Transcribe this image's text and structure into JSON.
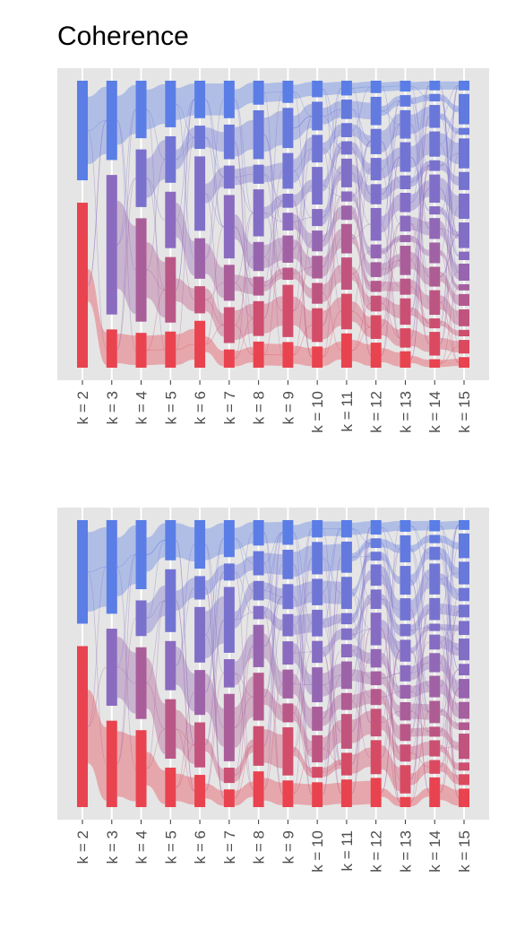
{
  "title": "Coherence",
  "chart_data": [
    {
      "type": "alluvial",
      "title": "Coherence",
      "x_ticks": [
        "k = 2",
        "k = 3",
        "k = 4",
        "k = 5",
        "k = 6",
        "k = 7",
        "k = 8",
        "k = 9",
        "k = 10",
        "k = 11",
        "k = 12",
        "k = 13",
        "k = 14",
        "k = 15"
      ],
      "y_ticks": [],
      "grid": true,
      "colors": {
        "low": "#e8434f",
        "mid": "#8a6bbf",
        "high": "#5a7de6",
        "panel": "#e5e5e5"
      },
      "clusters_per_k": [
        2,
        3,
        4,
        5,
        6,
        7,
        8,
        9,
        10,
        11,
        12,
        13,
        14,
        15
      ]
    },
    {
      "type": "alluvial",
      "x_ticks": [
        "k = 2",
        "k = 3",
        "k = 4",
        "k = 5",
        "k = 6",
        "k = 7",
        "k = 8",
        "k = 9",
        "k = 10",
        "k = 11",
        "k = 12",
        "k = 13",
        "k = 14",
        "k = 15"
      ],
      "y_ticks": [],
      "grid": true,
      "colors": {
        "low": "#e8434f",
        "mid": "#8a6bbf",
        "high": "#5a7de6",
        "panel": "#e5e5e5"
      },
      "clusters_per_k": [
        2,
        3,
        4,
        5,
        6,
        7,
        8,
        9,
        10,
        11,
        12,
        13,
        14,
        15
      ]
    }
  ]
}
